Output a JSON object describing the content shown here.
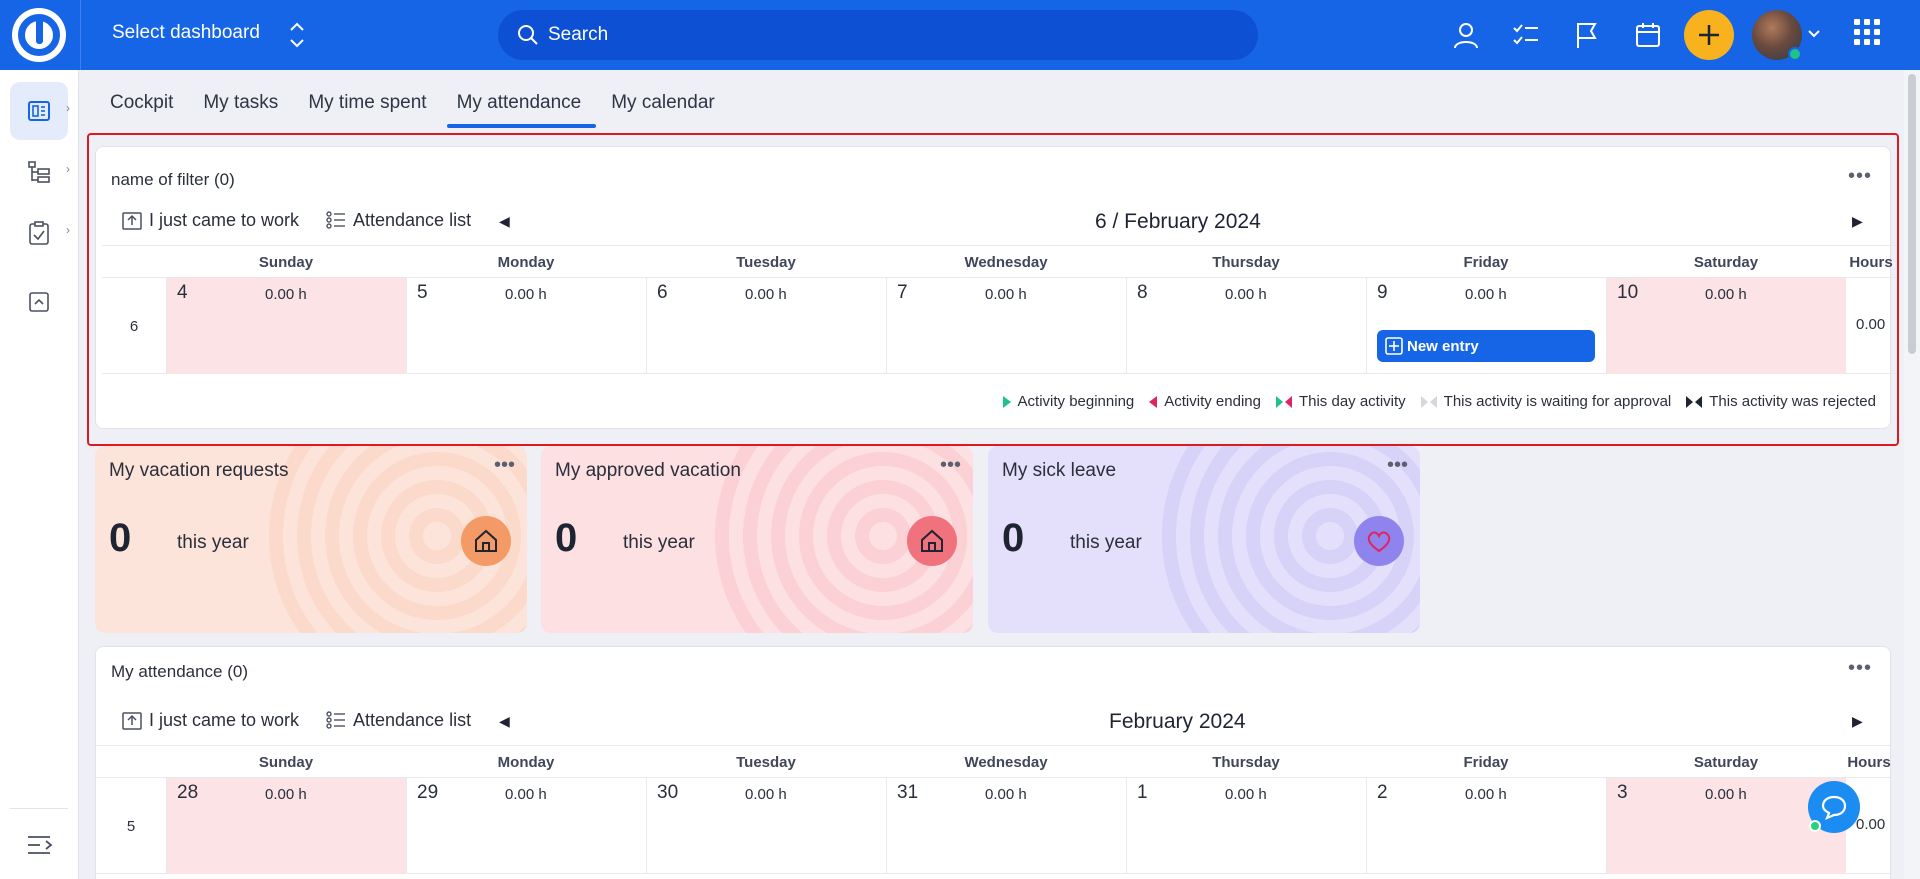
{
  "topbar": {
    "dashboard_select": "Select dashboard",
    "search_placeholder": "Search"
  },
  "tabs": [
    {
      "label": "Cockpit"
    },
    {
      "label": "My tasks"
    },
    {
      "label": "My time spent"
    },
    {
      "label": "My attendance",
      "active": true
    },
    {
      "label": "My calendar"
    }
  ],
  "filter_panel": {
    "title": "name of filter (0)",
    "came_to_work": "I just came to work",
    "attendance_list": "Attendance list",
    "period": "6 / February 2024",
    "weekdays": [
      "Sunday",
      "Monday",
      "Tuesday",
      "Wednesday",
      "Thursday",
      "Friday",
      "Saturday",
      "Hours"
    ],
    "week_number": "6",
    "days": [
      {
        "num": "4",
        "hours": "0.00 h"
      },
      {
        "num": "5",
        "hours": "0.00 h"
      },
      {
        "num": "6",
        "hours": "0.00 h"
      },
      {
        "num": "7",
        "hours": "0.00 h"
      },
      {
        "num": "8",
        "hours": "0.00 h"
      },
      {
        "num": "9",
        "hours": "0.00 h"
      },
      {
        "num": "10",
        "hours": "0.00 h"
      }
    ],
    "total_hours": "0.00",
    "new_entry": "New entry",
    "legend": [
      {
        "label": "Activity beginning",
        "color": "#1ec28b"
      },
      {
        "label": "Activity ending",
        "color": "#e0245e"
      },
      {
        "label": "This day activity",
        "color": "#1ec28b"
      },
      {
        "label": "This activity is waiting for approval",
        "color": "#c9ccd3"
      },
      {
        "label": "This activity was rejected",
        "color": "#1f2433"
      }
    ]
  },
  "stats": [
    {
      "title": "My vacation requests",
      "value": "0",
      "sub": "this year",
      "bg": "#fde4da",
      "icon": "home-icon",
      "icon_bg": "#f49a66"
    },
    {
      "title": "My approved vacation",
      "value": "0",
      "sub": "this year",
      "bg": "#fde0e2",
      "icon": "home-icon",
      "icon_bg": "#f0727c"
    },
    {
      "title": "My sick leave",
      "value": "0",
      "sub": "this year",
      "bg": "#e4e0fb",
      "icon": "heart-icon",
      "icon_bg": "#8f84ee"
    }
  ],
  "attendance_panel": {
    "title": "My attendance (0)",
    "came_to_work": "I just came to work",
    "attendance_list": "Attendance list",
    "period": "February 2024",
    "weekdays": [
      "Sunday",
      "Monday",
      "Tuesday",
      "Wednesday",
      "Thursday",
      "Friday",
      "Saturday",
      "Hours"
    ],
    "week_number": "5",
    "days": [
      {
        "num": "28",
        "hours": "0.00 h"
      },
      {
        "num": "29",
        "hours": "0.00 h"
      },
      {
        "num": "30",
        "hours": "0.00 h"
      },
      {
        "num": "31",
        "hours": "0.00 h"
      },
      {
        "num": "1",
        "hours": "0.00 h"
      },
      {
        "num": "2",
        "hours": "0.00 h"
      },
      {
        "num": "3",
        "hours": "0.00 h"
      }
    ],
    "total_hours": "0.00"
  }
}
